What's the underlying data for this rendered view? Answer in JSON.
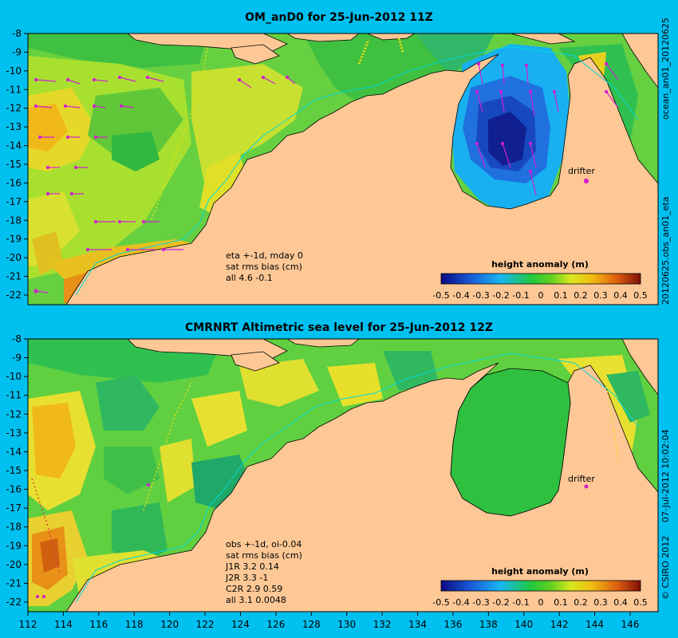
{
  "panel1": {
    "title": "OM_anD0 for 25-Jun-2012 11Z",
    "side_top": "ocean_an01_20120625",
    "side_bottom": "20120625.obs_an01_eta",
    "stats": [
      "eta +-1d, mday 0",
      "sat rms bias (cm)",
      "all 4.6 -0.1"
    ],
    "drifter_label": "drifter",
    "colorbar_title": "height anomaly (m)",
    "colorbar_ticks": [
      "-0.5",
      "-0.4",
      "-0.3",
      "-0.2",
      "-0.1",
      "0",
      "0.1",
      "0.2",
      "0.3",
      "0.4",
      "0.5"
    ],
    "y_ticks": [
      "-8",
      "-9",
      "-10",
      "-11",
      "-12",
      "-13",
      "-14",
      "-15",
      "-16",
      "-17",
      "-18",
      "-19",
      "-20",
      "-21",
      "-22"
    ]
  },
  "panel2": {
    "title": "CMRNRT Altimetric sea level  for 25-Jun-2012 12Z",
    "side_top": "07-Jul-2012 10:02:04",
    "side_bottom": "© CSIRO 2012",
    "stats": [
      "obs +-1d, oi-0.04",
      "sat rms bias (cm)",
      "J1R   3.2  0.14",
      "J2R   3.3  -1",
      "C2R   2.9  0.59",
      "all 3.1  0.0048"
    ],
    "drifter_label": "drifter",
    "colorbar_title": "height anomaly (m)",
    "colorbar_ticks": [
      "-0.5",
      "-0.4",
      "-0.3",
      "-0.2",
      "-0.1",
      "0",
      "0.1",
      "0.2",
      "0.3",
      "0.4",
      "0.5"
    ],
    "y_ticks": [
      "-8",
      "-9",
      "-10",
      "-11",
      "-12",
      "-13",
      "-14",
      "-15",
      "-16",
      "-17",
      "-18",
      "-19",
      "-20",
      "-21",
      "-22"
    ]
  },
  "x_ticks": [
    "112",
    "114",
    "116",
    "118",
    "120",
    "122",
    "124",
    "126",
    "128",
    "130",
    "132",
    "134",
    "136",
    "138",
    "140",
    "142",
    "144",
    "146"
  ],
  "colors": {
    "background": "#00c0f0",
    "land": "#fdc896",
    "ocean_green": "#33c833",
    "ocean_yellow": "#e6e633",
    "ocean_blue": "#1a70e0",
    "ocean_deep_blue": "#102090",
    "vectors": "#d020d0",
    "track": "#00d8d8"
  }
}
